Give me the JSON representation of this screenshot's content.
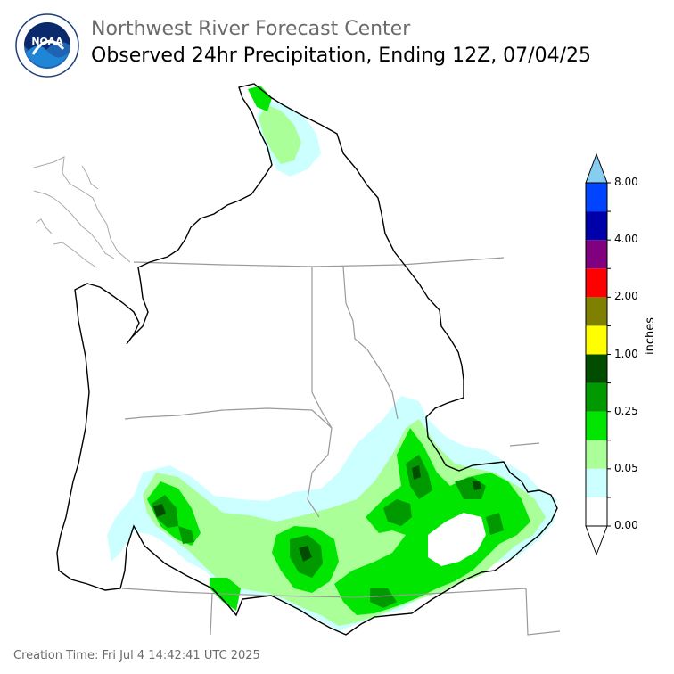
{
  "header": {
    "agency": "Northwest River Forecast Center",
    "title": "Observed 24hr Precipitation, Ending 12Z, 07/04/25",
    "logo_text": "NOAA",
    "logo_ring_text": "NATIONAL OCEANIC AND ATMOSPHERIC ADMINISTRATION · U.S. DEPARTMENT OF COMMERCE"
  },
  "legend": {
    "units": "inches",
    "labels": [
      "0.00",
      "0.05",
      "0.25",
      "1.00",
      "2.00",
      "4.00",
      "8.00"
    ],
    "colors": [
      "#ffffff",
      "#ccffff",
      "#aaff99",
      "#00e600",
      "#009900",
      "#004d00",
      "#ffff00",
      "#808000",
      "#ff0000",
      "#800080",
      "#0000aa",
      "#0044ff",
      "#88ccf0"
    ]
  },
  "footer": {
    "creation_time": "Creation Time: Fri Jul 4 14:42:41 UTC 2025"
  }
}
